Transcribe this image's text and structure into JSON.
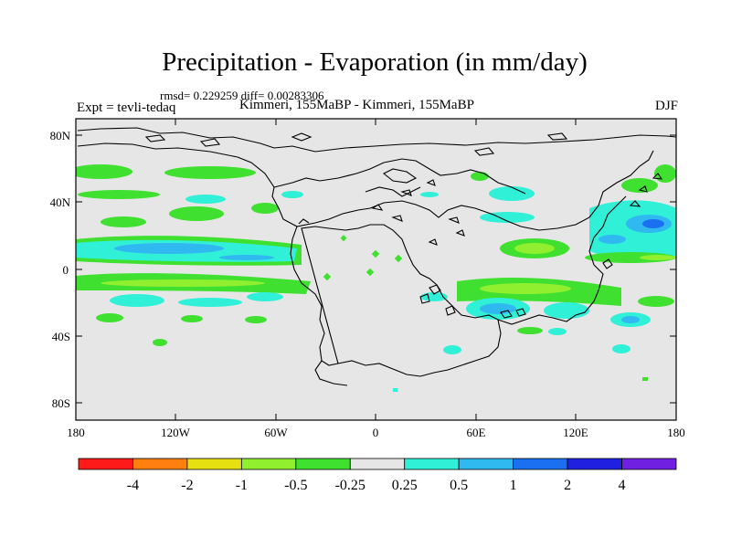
{
  "title": "Precipitation - Evaporation (in mm/day)",
  "stats_line": "rmsd= 0.229259 diff= 0.00283306",
  "left_label": "Expt = tevli-tedaq",
  "center_label": "Kimmeri, 155MaBP - Kimmeri, 155MaBP",
  "right_label": "DJF",
  "lat_ticks": [
    "80N",
    "40N",
    "0",
    "40S",
    "80S"
  ],
  "lon_ticks": [
    "180",
    "120W",
    "60W",
    "0",
    "60E",
    "120E",
    "180"
  ],
  "colorbar": {
    "colors": [
      "#ff1a1a",
      "#ff8010",
      "#e6e010",
      "#90f030",
      "#40e030",
      "#e6e6e6",
      "#30f0d8",
      "#30b8f0",
      "#1a70f0",
      "#2020e0",
      "#7020e0"
    ],
    "labels": [
      "-4",
      "-2",
      "-1",
      "-0.5",
      "-0.25",
      "0.25",
      "0.5",
      "1",
      "2",
      "4"
    ]
  },
  "map_colors": {
    "background": "#e6e6e6",
    "light_green": "#40e030",
    "yellow_green": "#90f030",
    "cyan": "#30f0d8",
    "light_blue": "#30b8f0",
    "blue": "#1a70f0"
  }
}
